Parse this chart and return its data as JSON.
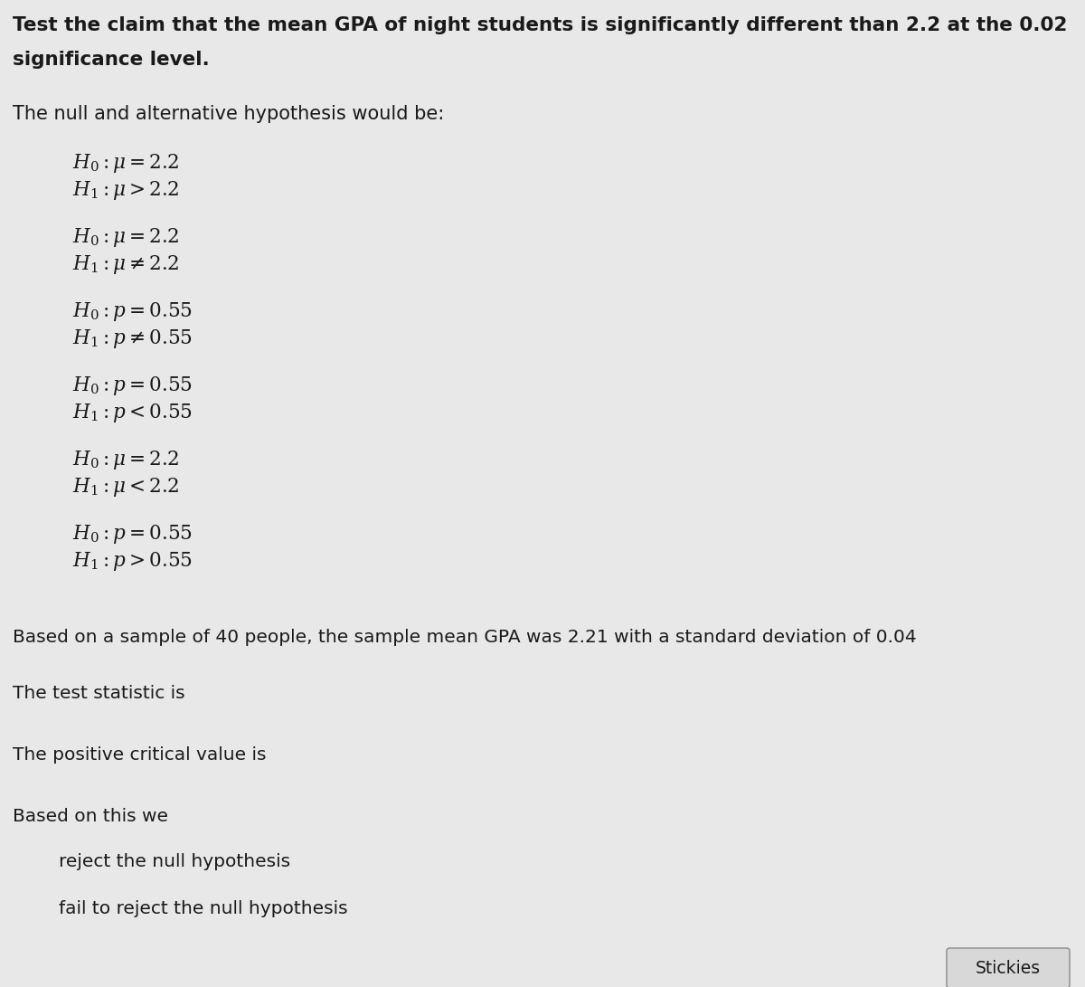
{
  "background_color": "#e8e8e8",
  "text_color": "#1a1a1a",
  "title_line1": "Test the claim that the mean GPA of night students is significantly different than 2.2 at the 0.02",
  "title_line2": "significance level.",
  "hypothesis_header": "The null and alternative hypothesis would be:",
  "hypotheses": [
    [
      "$H_0:\\mu = 2.2$",
      "$H_1:\\mu > 2.2$"
    ],
    [
      "$H_0:\\mu = 2.2$",
      "$H_1:\\mu \\neq 2.2$"
    ],
    [
      "$H_0:p = 0.55$",
      "$H_1:p \\neq 0.55$"
    ],
    [
      "$H_0:p = 0.55$",
      "$H_1:p < 0.55$"
    ],
    [
      "$H_0:\\mu = 2.2$",
      "$H_1:\\mu < 2.2$"
    ],
    [
      "$H_0:p = 0.55$",
      "$H_1:p > 0.55$"
    ]
  ],
  "sample_text": "Based on a sample of 40 people, the sample mean GPA was 2.21 with a standard deviation of 0.04",
  "test_stat_text": "The test statistic is",
  "critical_value_text": "The positive critical value is",
  "based_on_text": "Based on this we",
  "option1": "reject the null hypothesis",
  "option2": "fail to reject the null hypothesis",
  "stickies_label": "Stickies",
  "stickies_box_color": "#d8d8d8",
  "stickies_border_color": "#888888",
  "fs_title": 15.5,
  "fs_header": 15.0,
  "fs_hyp": 15.5,
  "fs_body": 14.5,
  "fs_stickies": 13.5
}
